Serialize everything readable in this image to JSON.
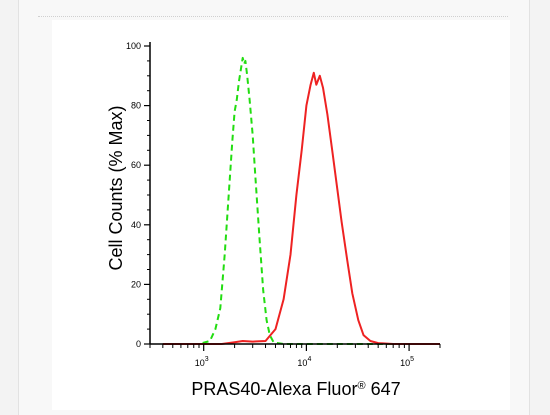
{
  "chart_data": {
    "type": "line",
    "x_scale": "log",
    "xlabel": "PRAS40-Alexa Fluor",
    "xlabel_mark": "®",
    "xlabel_suffix": " 647",
    "ylabel": "Cell Counts (% Max)",
    "xlim": [
      300,
      200000
    ],
    "ylim": [
      0,
      100
    ],
    "x_ticks": [
      {
        "value": 1000,
        "base": "10",
        "exp": "3"
      },
      {
        "value": 10000,
        "base": "10",
        "exp": "4"
      },
      {
        "value": 100000,
        "base": "10",
        "exp": "5"
      }
    ],
    "y_ticks": [
      {
        "value": 0,
        "label": "0"
      },
      {
        "value": 20,
        "label": "20"
      },
      {
        "value": 40,
        "label": "40"
      },
      {
        "value": 60,
        "label": "60"
      },
      {
        "value": 80,
        "label": "80"
      },
      {
        "value": 100,
        "label": "100"
      }
    ],
    "grid": false,
    "series": [
      {
        "style": "dashed",
        "color": "#22dd11",
        "points": [
          [
            400,
            0
          ],
          [
            900,
            0
          ],
          [
            1150,
            1
          ],
          [
            1300,
            5
          ],
          [
            1450,
            12
          ],
          [
            1600,
            30
          ],
          [
            1750,
            50
          ],
          [
            1900,
            68
          ],
          [
            2000,
            78
          ],
          [
            2100,
            82
          ],
          [
            2200,
            88
          ],
          [
            2300,
            92
          ],
          [
            2400,
            96
          ],
          [
            2480,
            94
          ],
          [
            2550,
            95
          ],
          [
            2650,
            90
          ],
          [
            2800,
            82
          ],
          [
            3000,
            70
          ],
          [
            3200,
            55
          ],
          [
            3500,
            35
          ],
          [
            3800,
            18
          ],
          [
            4100,
            8
          ],
          [
            4400,
            3
          ],
          [
            4800,
            0.5
          ],
          [
            6000,
            0
          ],
          [
            15000,
            0
          ],
          [
            30000,
            0
          ],
          [
            150000,
            0
          ]
        ]
      },
      {
        "style": "solid",
        "color": "#ee2222",
        "points": [
          [
            400,
            0
          ],
          [
            1500,
            0
          ],
          [
            2000,
            0.6
          ],
          [
            2400,
            1
          ],
          [
            3000,
            0.8
          ],
          [
            4000,
            1
          ],
          [
            5000,
            5
          ],
          [
            6000,
            15
          ],
          [
            7000,
            30
          ],
          [
            8000,
            50
          ],
          [
            9000,
            65
          ],
          [
            10000,
            80
          ],
          [
            11000,
            87
          ],
          [
            11800,
            91
          ],
          [
            12500,
            87
          ],
          [
            13500,
            90
          ],
          [
            14500,
            86
          ],
          [
            16000,
            77
          ],
          [
            18000,
            64
          ],
          [
            20000,
            52
          ],
          [
            22000,
            41
          ],
          [
            25000,
            28
          ],
          [
            28000,
            17
          ],
          [
            32000,
            8
          ],
          [
            36000,
            3
          ],
          [
            42000,
            1
          ],
          [
            50000,
            0.3
          ],
          [
            70000,
            0
          ],
          [
            200000,
            0
          ]
        ]
      }
    ]
  }
}
